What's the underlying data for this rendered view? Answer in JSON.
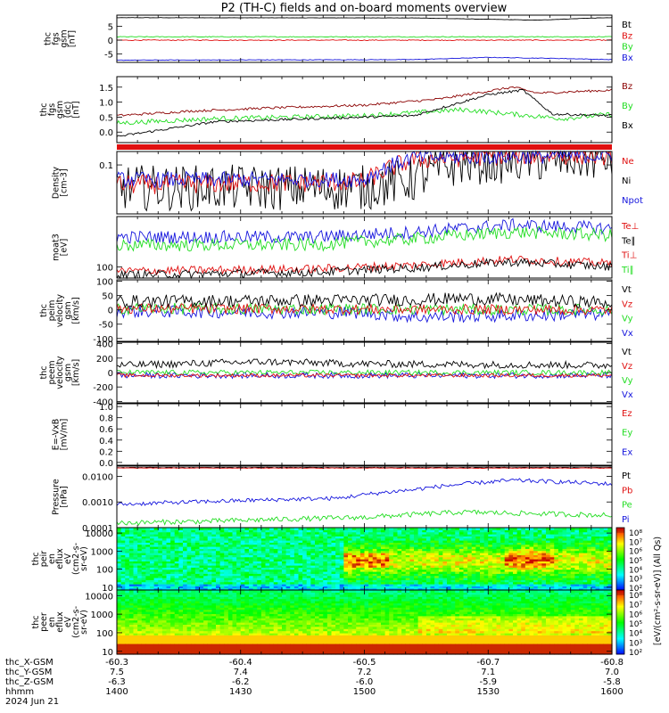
{
  "title": "P2 (TH-C) fields and on-board moments overview",
  "colors": {
    "black": "#000000",
    "red": "#e01010",
    "darkred": "#8b0000",
    "green": "#22dd22",
    "blue": "#1515dd",
    "orange": "#ff8800"
  },
  "chart_data": [
    {
      "type": "line",
      "id": "fgs",
      "ylabel": [
        "thc",
        "fgs",
        "gsm",
        "[nT]"
      ],
      "ylim": [
        -8,
        9
      ],
      "yticks": [
        "5",
        "0",
        "-5"
      ],
      "ytickvals": [
        5,
        0,
        -5
      ],
      "legend": [
        {
          "name": "Bt",
          "color": "black"
        },
        {
          "name": "Bz",
          "color": "red"
        },
        {
          "name": "By",
          "color": "green"
        },
        {
          "name": "Bx",
          "color": "blue"
        }
      ],
      "series": [
        {
          "color": "black",
          "base": [
            [
              0,
              8.1
            ],
            [
              0.6,
              8.0
            ],
            [
              0.85,
              7.2
            ],
            [
              0.95,
              7.9
            ],
            [
              1,
              8.1
            ]
          ],
          "noise": 0.05
        },
        {
          "color": "red",
          "base": [
            [
              0,
              0
            ],
            [
              1,
              0
            ]
          ],
          "noise": 0.15
        },
        {
          "color": "green",
          "base": [
            [
              0,
              1.2
            ],
            [
              1,
              1.2
            ]
          ],
          "noise": 0.15
        },
        {
          "color": "blue",
          "base": [
            [
              0,
              -7.2
            ],
            [
              0.6,
              -7.0
            ],
            [
              0.75,
              -6.2
            ],
            [
              0.9,
              -6.6
            ],
            [
              1,
              -7.0
            ]
          ],
          "noise": 0.1
        }
      ]
    },
    {
      "type": "line",
      "id": "fgs2",
      "ylabel": [
        "thc",
        "fgs",
        "gsm",
        "(dc)",
        "[nT]"
      ],
      "ylim": [
        -0.35,
        1.85
      ],
      "yticks": [
        "1.5",
        "1.0",
        "0.5",
        "0.0"
      ],
      "ytickvals": [
        1.5,
        1.0,
        0.5,
        0.0
      ],
      "legend": [
        {
          "name": "Bz",
          "color": "darkred"
        },
        {
          "name": "By",
          "color": "green"
        },
        {
          "name": "Bx",
          "color": "black"
        }
      ],
      "series": [
        {
          "color": "darkred",
          "base": [
            [
              0,
              0.55
            ],
            [
              0.15,
              0.7
            ],
            [
              0.3,
              0.8
            ],
            [
              0.5,
              0.9
            ],
            [
              0.65,
              1.1
            ],
            [
              0.8,
              1.5
            ],
            [
              0.85,
              1.3
            ],
            [
              1,
              1.4
            ]
          ],
          "noise": 0.04
        },
        {
          "color": "green",
          "base": [
            [
              0,
              0.3
            ],
            [
              0.2,
              0.45
            ],
            [
              0.5,
              0.55
            ],
            [
              0.7,
              0.75
            ],
            [
              0.8,
              0.6
            ],
            [
              0.9,
              0.45
            ],
            [
              1,
              0.6
            ]
          ],
          "noise": 0.08
        },
        {
          "color": "black",
          "base": [
            [
              0,
              -0.15
            ],
            [
              0.2,
              0.35
            ],
            [
              0.4,
              0.45
            ],
            [
              0.6,
              0.55
            ],
            [
              0.75,
              1.25
            ],
            [
              0.82,
              1.4
            ],
            [
              0.88,
              0.6
            ],
            [
              1,
              0.55
            ]
          ],
          "noise": 0.04
        }
      ]
    },
    {
      "type": "line",
      "id": "density",
      "ylabel": [
        "Density",
        "[cm-3]"
      ],
      "log": true,
      "ylim": [
        0.018,
        0.16
      ],
      "yticks": [
        "0.1"
      ],
      "ytickvals": [
        0.1
      ],
      "legend": [
        {
          "name": "Ne",
          "color": "red"
        },
        {
          "name": "Ni",
          "color": "black"
        },
        {
          "name": "Npot",
          "color": "blue"
        }
      ],
      "series": [
        {
          "color": "black",
          "base": [
            [
              0,
              0.045
            ],
            [
              0.5,
              0.045
            ],
            [
              0.6,
              0.06
            ],
            [
              0.7,
              0.11
            ],
            [
              1,
              0.13
            ]
          ],
          "noise": 0.35
        },
        {
          "color": "red",
          "base": [
            [
              0,
              0.05
            ],
            [
              0.5,
              0.055
            ],
            [
              0.6,
              0.12
            ],
            [
              0.8,
              0.14
            ],
            [
              1,
              0.14
            ]
          ],
          "noise": 0.15
        },
        {
          "color": "blue",
          "base": [
            [
              0,
              0.06
            ],
            [
              0.5,
              0.06
            ],
            [
              0.6,
              0.13
            ],
            [
              1,
              0.14
            ]
          ],
          "noise": 0.12
        }
      ]
    },
    {
      "type": "line",
      "id": "temp",
      "ylabel": [
        "moat3",
        "[eV]"
      ],
      "log": true,
      "ylim": [
        55,
        1500
      ],
      "yticks": [
        "100"
      ],
      "ytickvals": [
        100
      ],
      "legend": [
        {
          "name": "Te⊥",
          "color": "red"
        },
        {
          "name": "Te∥",
          "color": "black"
        },
        {
          "name": "Ti⊥",
          "color": "red"
        },
        {
          "name": "Ti∥",
          "color": "green"
        }
      ],
      "series": [
        {
          "color": "blue",
          "base": [
            [
              0,
              500
            ],
            [
              0.4,
              500
            ],
            [
              0.6,
              650
            ],
            [
              0.8,
              950
            ],
            [
              1,
              800
            ]
          ],
          "noise": 0.15
        },
        {
          "color": "green",
          "base": [
            [
              0,
              320
            ],
            [
              0.4,
              330
            ],
            [
              0.6,
              450
            ],
            [
              0.8,
              650
            ],
            [
              1,
              550
            ]
          ],
          "noise": 0.15
        },
        {
          "color": "red",
          "base": [
            [
              0,
              80
            ],
            [
              0.4,
              90
            ],
            [
              0.6,
              110
            ],
            [
              0.8,
              150
            ],
            [
              1,
              120
            ]
          ],
          "noise": 0.1
        },
        {
          "color": "black",
          "base": [
            [
              0,
              65
            ],
            [
              0.4,
              75
            ],
            [
              0.6,
              95
            ],
            [
              0.8,
              130
            ],
            [
              1,
              100
            ]
          ],
          "noise": 0.1
        }
      ]
    },
    {
      "type": "line",
      "id": "peim",
      "ylabel": [
        "thc",
        "peim",
        "velocity",
        "gsm",
        "[km/s]"
      ],
      "ylim": [
        -110,
        105
      ],
      "yticks": [
        "100",
        "50",
        "0",
        "-50",
        "-100"
      ],
      "ytickvals": [
        100,
        50,
        0,
        -50,
        -100
      ],
      "legend": [
        {
          "name": "Vt",
          "color": "black"
        },
        {
          "name": "Vz",
          "color": "red"
        },
        {
          "name": "Vy",
          "color": "green"
        },
        {
          "name": "Vx",
          "color": "blue"
        }
      ],
      "series": [
        {
          "color": "blue",
          "base": [
            [
              0,
              -5
            ],
            [
              0.5,
              -10
            ],
            [
              0.6,
              -25
            ],
            [
              1,
              -15
            ]
          ],
          "noise": 22
        },
        {
          "color": "green",
          "base": [
            [
              0,
              5
            ],
            [
              1,
              0
            ]
          ],
          "noise": 20
        },
        {
          "color": "red",
          "base": [
            [
              0,
              5
            ],
            [
              1,
              0
            ]
          ],
          "noise": 18
        },
        {
          "color": "black",
          "base": [
            [
              0,
              30
            ],
            [
              0.6,
              35
            ],
            [
              0.7,
              40
            ],
            [
              1,
              25
            ]
          ],
          "noise": 22
        }
      ]
    },
    {
      "type": "line",
      "id": "peem",
      "ylabel": [
        "thc",
        "peem",
        "velocity",
        "gsm",
        "[km/s]"
      ],
      "ylim": [
        -420,
        420
      ],
      "yticks": [
        "400",
        "200",
        "0",
        "-200",
        "-400"
      ],
      "ytickvals": [
        400,
        200,
        0,
        -200,
        -400
      ],
      "legend": [
        {
          "name": "Vt",
          "color": "black"
        },
        {
          "name": "Vz",
          "color": "red"
        },
        {
          "name": "Vy",
          "color": "green"
        },
        {
          "name": "Vx",
          "color": "blue"
        }
      ],
      "series": [
        {
          "color": "blue",
          "base": [
            [
              0,
              -40
            ],
            [
              1,
              -40
            ]
          ],
          "noise": 40
        },
        {
          "color": "green",
          "base": [
            [
              0,
              0
            ],
            [
              1,
              0
            ]
          ],
          "noise": 35
        },
        {
          "color": "red",
          "base": [
            [
              0,
              -40
            ],
            [
              1,
              -40
            ]
          ],
          "noise": 25
        },
        {
          "color": "black",
          "base": [
            [
              0,
              100
            ],
            [
              0.3,
              150
            ],
            [
              0.5,
              120
            ],
            [
              1,
              100
            ]
          ],
          "noise": 50
        }
      ]
    },
    {
      "type": "line",
      "id": "efield",
      "ylabel": [
        "E=-VxB",
        "[mV/m]"
      ],
      "ylim": [
        -0.05,
        1.05
      ],
      "yticks": [
        "1.0",
        "0.8",
        "0.6",
        "0.4",
        "0.2",
        "0.0"
      ],
      "ytickvals": [
        1.0,
        0.8,
        0.6,
        0.4,
        0.2,
        0.0
      ],
      "legend": [
        {
          "name": "Ez",
          "color": "red"
        },
        {
          "name": "Ey",
          "color": "green"
        },
        {
          "name": "Ex",
          "color": "blue"
        }
      ],
      "series": []
    },
    {
      "type": "line",
      "id": "pressure",
      "ylabel": [
        "Pressure",
        "[nPa]"
      ],
      "log": true,
      "ylim": [
        0.0001,
        0.025
      ],
      "yticks": [
        "0.0100",
        "0.0010",
        "0.0001"
      ],
      "ytickvals": [
        0.01,
        0.001,
        0.0001
      ],
      "legend": [
        {
          "name": "Pt",
          "color": "black"
        },
        {
          "name": "Pb",
          "color": "red"
        },
        {
          "name": "Pe",
          "color": "green"
        },
        {
          "name": "Pi",
          "color": "blue"
        }
      ],
      "series": [
        {
          "color": "black",
          "base": [
            [
              0,
              0.022
            ],
            [
              1,
              0.022
            ]
          ],
          "noise": 0.01
        },
        {
          "color": "red",
          "base": [
            [
              0,
              0.021
            ],
            [
              1,
              0.021
            ]
          ],
          "noise": 0.01
        },
        {
          "color": "blue",
          "base": [
            [
              0,
              0.0008
            ],
            [
              0.3,
              0.0012
            ],
            [
              0.45,
              0.0014
            ],
            [
              0.6,
              0.003
            ],
            [
              0.8,
              0.007
            ],
            [
              1,
              0.005
            ]
          ],
          "noise": 0.08
        },
        {
          "color": "green",
          "base": [
            [
              0,
              0.00015
            ],
            [
              0.2,
              0.00018
            ],
            [
              0.5,
              0.00025
            ],
            [
              0.7,
              0.0004
            ],
            [
              1,
              0.0003
            ]
          ],
          "noise": 0.1
        }
      ]
    },
    {
      "type": "heatmap",
      "id": "peir",
      "ylabel": [
        "thc",
        "peir",
        "en",
        "eflux",
        "eV",
        "(cm2-s-",
        "sr-eV)"
      ],
      "log": true,
      "ylim": [
        7,
        20000
      ],
      "yticks": [
        "10000",
        "1000",
        "100",
        "10"
      ],
      "ytickvals": [
        10000,
        1000,
        100,
        10
      ]
    },
    {
      "type": "heatmap",
      "id": "peer",
      "ylabel": [
        "thc",
        "peer",
        "en",
        "eflux",
        "eV",
        "(cm2-s-",
        "sr-eV)"
      ],
      "log": true,
      "ylim": [
        7,
        20000
      ],
      "yticks": [
        "10000",
        "1000",
        "100",
        "10"
      ],
      "ytickvals": [
        10000,
        1000,
        100,
        10
      ]
    }
  ],
  "colorbar": {
    "label": "[eV/(cm²-s-sr-eV)] (All Qs)",
    "ticks_top": [
      "10⁸",
      "10⁷",
      "10⁶",
      "10⁵",
      "10⁴",
      "10³",
      "10²"
    ],
    "ticks_bottom": [
      "10⁸",
      "10⁷",
      "10⁶",
      "10⁵",
      "10⁴",
      "10³",
      "10²"
    ]
  },
  "xaxis": {
    "rows": [
      {
        "label": "thc_X-GSM",
        "values": [
          "-60.3",
          "-60.4",
          "-60.5",
          "-60.7",
          "-60.8"
        ],
        "full": [
          "-60.3",
          "-60.4",
          "-60.5",
          "-60.7",
          "-60.8"
        ]
      },
      {
        "label": "thc_Y-GSM",
        "values": [
          "7.5",
          "7.4",
          "7.2",
          "7.1",
          "7.0"
        ]
      },
      {
        "label": "thc_Z-GSM",
        "values": [
          "-6.3",
          "-6.2",
          "-6.0",
          "-5.9",
          "-5.8"
        ]
      },
      {
        "label": "hhmm",
        "values": [
          "1400",
          "1430",
          "1500",
          "1530",
          "1600"
        ]
      }
    ],
    "date": "2024 Jun 21"
  }
}
